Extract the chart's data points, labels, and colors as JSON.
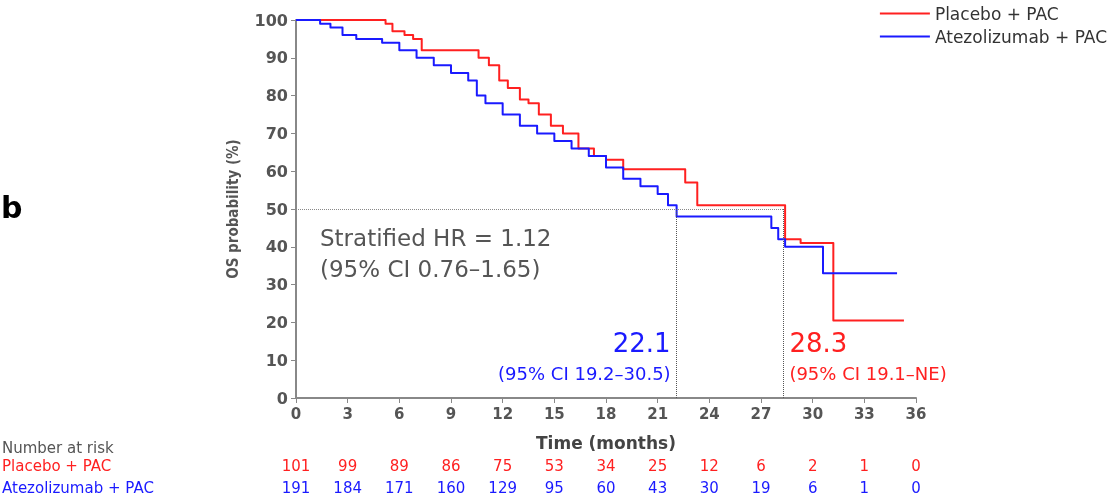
{
  "chart_data": {
    "type": "step",
    "xlabel": "Time (months)",
    "ylabel": "OS probability (%)",
    "xlim": [
      0,
      36
    ],
    "xticks": [
      0,
      3,
      6,
      9,
      12,
      15,
      18,
      21,
      24,
      27,
      30,
      33,
      36
    ],
    "ylim": [
      0,
      100
    ],
    "yticks": [
      0,
      10,
      20,
      30,
      40,
      50,
      60,
      70,
      80,
      90,
      100
    ],
    "grid": false,
    "legend": "top right",
    "line_style": "solid",
    "series": [
      {
        "name": "Placebo + PAC",
        "color": "#ff2020",
        "x": [
          0,
          4.8,
          5.2,
          5.6,
          6.3,
          6.8,
          7.3,
          10.1,
          10.6,
          11.2,
          11.8,
          12.3,
          13,
          13.5,
          14.1,
          14.8,
          15.5,
          16.4,
          17.3,
          18,
          19,
          22.4,
          22.6,
          23.3,
          28.3,
          28.4,
          29.3,
          31.1,
          31.2,
          35.3
        ],
        "values": [
          100,
          100,
          99,
          97,
          96,
          95,
          92,
          92,
          90,
          88,
          84,
          82,
          79,
          78,
          75,
          72,
          70,
          66,
          64,
          63,
          60.5,
          60.5,
          57,
          51,
          51,
          42,
          41,
          41,
          20.5,
          20.5
        ]
      },
      {
        "name": "Atezolizumab + PAC",
        "color": "#1a1aff",
        "x": [
          0,
          1.4,
          2,
          2.7,
          3.5,
          5,
          6,
          7,
          8,
          9,
          10,
          10.5,
          11,
          12,
          13,
          14,
          15,
          16,
          17,
          18,
          19,
          20,
          21,
          21.6,
          22.1,
          27.3,
          27.6,
          28,
          28.4,
          30.5,
          30.6,
          34.9
        ],
        "values": [
          100,
          99,
          98,
          96,
          95,
          94,
          92,
          90,
          88,
          86,
          84,
          80,
          78,
          75,
          72,
          70,
          68,
          66,
          64,
          61,
          58,
          56,
          54,
          51,
          48,
          48,
          45,
          42,
          40,
          40,
          33,
          33
        ]
      }
    ],
    "ref_lines": [
      {
        "axis": "y",
        "value": 50,
        "color": "#888888",
        "line_style": "dotted"
      },
      {
        "axis": "x",
        "value": 22.1,
        "color": "#555555",
        "line_style": "dotted"
      },
      {
        "axis": "x",
        "value": 28.3,
        "color": "#555555",
        "line_style": "dotted"
      }
    ],
    "annotations": [
      "Stratified HR = 1.12",
      "(95% CI 0.76–1.65)",
      "22.1",
      "(95% CI 19.2–30.5)",
      "28.3",
      "(95% CI 19.1–NE)",
      "Number at risk",
      "101",
      "99",
      "89",
      "86",
      "75",
      "53",
      "34",
      "25",
      "12",
      "6",
      "2",
      "1",
      "0",
      "191",
      "184",
      "171",
      "160",
      "129",
      "95",
      "60",
      "43",
      "30",
      "19",
      "6",
      "1",
      "0",
      "b"
    ]
  }
}
